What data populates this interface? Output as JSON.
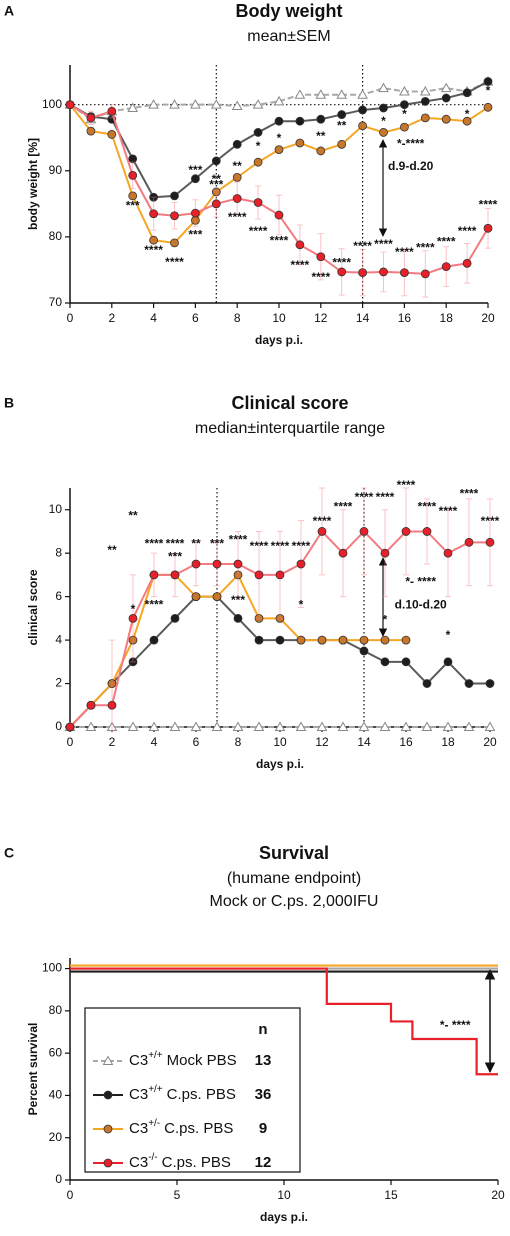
{
  "chart_data": [
    {
      "type": "line",
      "panel": "A",
      "title": "Body weight",
      "subtitle": "mean±SEM",
      "xlabel": "days p.i.",
      "ylabel": "body weight [%]",
      "x": [
        0,
        1,
        2,
        3,
        4,
        5,
        6,
        7,
        8,
        9,
        10,
        11,
        12,
        13,
        14,
        15,
        16,
        17,
        18,
        19,
        20
      ],
      "xlim": [
        0,
        20
      ],
      "xticks": [
        0,
        2,
        4,
        6,
        8,
        10,
        12,
        14,
        16,
        18,
        20
      ],
      "ylim": [
        70,
        106
      ],
      "yticks": [
        70,
        80,
        90,
        100
      ],
      "vlines": [
        7,
        14
      ],
      "hlines": [
        100
      ],
      "series": [
        {
          "color": "#a8a8a8",
          "marker_color": "#ffffff",
          "marker": "triangle",
          "dashed": true,
          "values": [
            100,
            97.8,
            99,
            99.5,
            100,
            100,
            100,
            100,
            99.8,
            100,
            100.5,
            101.5,
            101.5,
            101.5,
            101.5,
            102.5,
            102,
            102,
            102.5,
            102,
            103.5
          ]
        },
        {
          "color": "#5a5a5a",
          "marker_color": "#1e1e1e",
          "marker": "circle",
          "values": [
            100,
            98.2,
            97.8,
            91.8,
            86,
            86.2,
            88.8,
            91.5,
            94,
            95.8,
            97.5,
            97.5,
            97.8,
            98.5,
            99.2,
            99.5,
            100,
            100.5,
            101,
            101.8,
            103.5
          ]
        },
        {
          "color": "#f5a623",
          "marker_color": "#c8762a",
          "marker": "circle",
          "values": [
            100,
            96,
            95.5,
            86.2,
            79.5,
            79.1,
            82.5,
            86.8,
            89,
            91.3,
            93.2,
            94.2,
            93,
            94,
            96.8,
            95.8,
            96.6,
            98,
            97.8,
            97.5,
            99.6
          ]
        },
        {
          "color": "#f47a80",
          "marker_color": "#e8202a",
          "marker": "circle",
          "values": [
            100,
            98,
            99,
            89.3,
            83.5,
            83.2,
            83.6,
            85,
            85.8,
            85.2,
            83.3,
            78.8,
            77,
            74.7,
            74.6,
            74.7,
            74.6,
            74.4,
            75.5,
            76,
            81.3
          ],
          "errors": [
            0,
            1,
            1,
            2,
            2.5,
            2,
            2,
            2,
            2.5,
            2.5,
            3,
            3,
            3.5,
            3.5,
            3.5,
            3,
            3.5,
            3.5,
            3,
            3,
            3
          ]
        }
      ],
      "annotations": [
        {
          "x": 6,
          "y": 90,
          "text": "***",
          "color": "#e8202a"
        },
        {
          "x": 7,
          "y": 87.8,
          "text": "***",
          "color": "#e8202a"
        },
        {
          "x": 8,
          "y": 82.9,
          "text": "****",
          "color": "#e8202a"
        },
        {
          "x": 9,
          "y": 80.8,
          "text": "****",
          "color": "#e8202a"
        },
        {
          "x": 10,
          "y": 79.3,
          "text": "****",
          "color": "#e8202a"
        },
        {
          "x": 11,
          "y": 75.6,
          "text": "****",
          "color": "#e8202a"
        },
        {
          "x": 12,
          "y": 73.8,
          "text": "****",
          "color": "#e8202a"
        },
        {
          "x": 13,
          "y": 76,
          "text": "****",
          "color": "#e8202a"
        },
        {
          "x": 14,
          "y": 78.5,
          "text": "****",
          "color": "#e8202a"
        },
        {
          "x": 15,
          "y": 78.8,
          "text": "****",
          "color": "#e8202a"
        },
        {
          "x": 16,
          "y": 77.6,
          "text": "****",
          "color": "#e8202a"
        },
        {
          "x": 17,
          "y": 78.3,
          "text": "****",
          "color": "#e8202a"
        },
        {
          "x": 18,
          "y": 79.2,
          "text": "****",
          "color": "#e8202a"
        },
        {
          "x": 19,
          "y": 80.8,
          "text": "****",
          "color": "#e8202a"
        },
        {
          "x": 20,
          "y": 84.8,
          "text": "****",
          "color": "#e8202a"
        },
        {
          "x": 3,
          "y": 84.6,
          "text": "***",
          "color": "#f08c00"
        },
        {
          "x": 4,
          "y": 77.9,
          "text": "****",
          "color": "#f08c00"
        },
        {
          "x": 5,
          "y": 76.1,
          "text": "****",
          "color": "#f08c00"
        },
        {
          "x": 6,
          "y": 80.2,
          "text": "***",
          "color": "#f08c00"
        },
        {
          "x": 7,
          "y": 88.6,
          "text": "**",
          "color": "#f08c00"
        },
        {
          "x": 8,
          "y": 90.6,
          "text": "**",
          "color": "#f08c00"
        },
        {
          "x": 9,
          "y": 93.6,
          "text": "*",
          "color": "#f08c00"
        },
        {
          "x": 10,
          "y": 94.8,
          "text": "*",
          "color": "#f08c00"
        },
        {
          "x": 11,
          "y": 96.8,
          "text": "*",
          "color": "#f08c00"
        },
        {
          "x": 12,
          "y": 95.1,
          "text": "**",
          "color": "#f08c00"
        },
        {
          "x": 13,
          "y": 96.7,
          "text": "**",
          "color": "#f08c00"
        },
        {
          "x": 15,
          "y": 97.4,
          "text": "*",
          "color": "#f08c00"
        },
        {
          "x": 16,
          "y": 98.5,
          "text": "*",
          "color": "#f08c00"
        },
        {
          "x": 19,
          "y": 98.5,
          "text": "*",
          "color": "#f08c00"
        },
        {
          "x": 20,
          "y": 102,
          "text": "*",
          "color": "#f08c00"
        },
        {
          "x": 16.3,
          "y": 94,
          "text": "*-****",
          "color": "#222222"
        },
        {
          "x": 16.3,
          "y": 90.6,
          "text": "d.9-d.20",
          "color": "#222222"
        }
      ]
    },
    {
      "type": "line",
      "panel": "B",
      "title": "Clinical score",
      "subtitle": "median±interquartile range",
      "xlabel": "days p.i.",
      "ylabel": "clinical score",
      "x": [
        0,
        1,
        2,
        3,
        4,
        5,
        6,
        7,
        8,
        9,
        10,
        11,
        12,
        13,
        14,
        15,
        16,
        17,
        18,
        19,
        20
      ],
      "xlim": [
        0,
        20
      ],
      "xticks": [
        0,
        2,
        4,
        6,
        8,
        10,
        12,
        14,
        16,
        18,
        20
      ],
      "ylim": [
        0,
        11
      ],
      "yticks": [
        0,
        2,
        4,
        6,
        8,
        10
      ],
      "vlines": [
        7,
        14
      ],
      "series": [
        {
          "color": "#a8a8a8",
          "marker_color": "#ffffff",
          "marker": "triangle",
          "dashed": true,
          "values": [
            0,
            0,
            0,
            0,
            0,
            0,
            0,
            0,
            0,
            0,
            0,
            0,
            0,
            0,
            0,
            0,
            0,
            0,
            0,
            0,
            0
          ]
        },
        {
          "color": "#5a5a5a",
          "marker_color": "#1e1e1e",
          "marker": "circle",
          "values": [
            0,
            1,
            2,
            3,
            4,
            5,
            6,
            6,
            5,
            4,
            4,
            4,
            4,
            4,
            3.5,
            3,
            3,
            2,
            3,
            2,
            2
          ]
        },
        {
          "color": "#f5a623",
          "marker_color": "#c8762a",
          "marker": "circle",
          "values": [
            0,
            1,
            2,
            4,
            7,
            7,
            6,
            6,
            7,
            5,
            5,
            4,
            4,
            4,
            4,
            4,
            4,
            null,
            null,
            null,
            null
          ]
        },
        {
          "color": "#f47a80",
          "marker_color": "#e8202a",
          "marker": "circle",
          "values": [
            0,
            1,
            1,
            5,
            7,
            7,
            7.5,
            7.5,
            7.5,
            7,
            7,
            7.5,
            9,
            8,
            9,
            8,
            9,
            9,
            8,
            8.5,
            8.5
          ],
          "errors": [
            0,
            0,
            3,
            2,
            1,
            1,
            1,
            1,
            1.5,
            2,
            2,
            2,
            2,
            2,
            2,
            2,
            2,
            1.5,
            2,
            2,
            2
          ]
        }
      ],
      "annotations": [
        {
          "x": 2,
          "y": 8.1,
          "text": "**",
          "color": "#e8202a"
        },
        {
          "x": 3,
          "y": 9.7,
          "text": "**",
          "color": "#e8202a"
        },
        {
          "x": 4,
          "y": 8.4,
          "text": "****",
          "color": "#e8202a"
        },
        {
          "x": 5,
          "y": 8.4,
          "text": "****",
          "color": "#e8202a"
        },
        {
          "x": 6,
          "y": 8.4,
          "text": "**",
          "color": "#e8202a"
        },
        {
          "x": 7,
          "y": 8.4,
          "text": "***",
          "color": "#e8202a"
        },
        {
          "x": 8,
          "y": 8.6,
          "text": "****",
          "color": "#e8202a"
        },
        {
          "x": 9,
          "y": 8.3,
          "text": "****",
          "color": "#e8202a"
        },
        {
          "x": 10,
          "y": 8.3,
          "text": "****",
          "color": "#e8202a"
        },
        {
          "x": 11,
          "y": 8.3,
          "text": "****",
          "color": "#e8202a"
        },
        {
          "x": 12,
          "y": 9.45,
          "text": "****",
          "color": "#e8202a"
        },
        {
          "x": 13,
          "y": 10.1,
          "text": "****",
          "color": "#e8202a"
        },
        {
          "x": 14,
          "y": 10.55,
          "text": "****",
          "color": "#e8202a"
        },
        {
          "x": 15,
          "y": 10.55,
          "text": "****",
          "color": "#e8202a"
        },
        {
          "x": 16,
          "y": 11.1,
          "text": "****",
          "color": "#e8202a"
        },
        {
          "x": 17,
          "y": 10.1,
          "text": "****",
          "color": "#e8202a"
        },
        {
          "x": 18,
          "y": 9.9,
          "text": "****",
          "color": "#e8202a"
        },
        {
          "x": 19,
          "y": 10.7,
          "text": "****",
          "color": "#e8202a"
        },
        {
          "x": 20,
          "y": 9.45,
          "text": "****",
          "color": "#e8202a"
        },
        {
          "x": 3,
          "y": 5.4,
          "text": "*",
          "color": "#f08c00"
        },
        {
          "x": 4,
          "y": 5.6,
          "text": "****",
          "color": "#f08c00"
        },
        {
          "x": 5,
          "y": 7.8,
          "text": "***",
          "color": "#f08c00"
        },
        {
          "x": 8,
          "y": 5.8,
          "text": "***",
          "color": "#f08c00"
        },
        {
          "x": 11,
          "y": 5.6,
          "text": "*",
          "color": "#f08c00"
        },
        {
          "x": 15,
          "y": 4.9,
          "text": "*",
          "color": "#f08c00"
        },
        {
          "x": 18,
          "y": 4.2,
          "text": "*",
          "color": "#f08c00"
        },
        {
          "x": 16.7,
          "y": 6.65,
          "text": "*- ****",
          "color": "#222222"
        },
        {
          "x": 16.7,
          "y": 5.6,
          "text": "d.10-d.20",
          "color": "#222222"
        }
      ]
    },
    {
      "type": "step",
      "panel": "C",
      "title": "Survival",
      "subtitle": [
        "(humane endpoint)",
        "Mock or C.ps. 2,000IFU"
      ],
      "xlabel": "days p.i.",
      "ylabel": "Percent survival",
      "xlim": [
        0,
        20
      ],
      "xticks": [
        0,
        5,
        10,
        15,
        20
      ],
      "ylim": [
        0,
        105
      ],
      "yticks": [
        0,
        20,
        40,
        60,
        80,
        100
      ],
      "series": [
        {
          "color": "#a8a8a8",
          "marker_color": "#ffffff",
          "marker": "triangle",
          "dashed": true,
          "x": [
            0,
            20
          ],
          "values": [
            100,
            100
          ]
        },
        {
          "color": "#1e1e1e",
          "marker_color": "#1e1e1e",
          "marker": "circle",
          "x": [
            0,
            20
          ],
          "values": [
            100,
            100
          ]
        },
        {
          "color": "#f5a623",
          "marker_color": "#c8762a",
          "marker": "circle",
          "x": [
            0,
            20
          ],
          "values": [
            100,
            100
          ]
        },
        {
          "color": "#e8202a",
          "marker_color": "#e8202a",
          "marker": "circle",
          "x": [
            0,
            12,
            15,
            16,
            19,
            20
          ],
          "values": [
            100,
            83.3,
            75,
            66.7,
            50,
            50
          ]
        }
      ],
      "annotations": [
        {
          "x": 18,
          "y": 73,
          "text": "*- ****",
          "color": "#222222"
        }
      ],
      "legend": {
        "header": "n",
        "entries": [
          {
            "genotype": "C3",
            "superscript": "+/+",
            "label": "Mock PBS",
            "n": 13
          },
          {
            "genotype": "C3",
            "superscript": "+/+",
            "label": "C.ps. PBS",
            "n": 36
          },
          {
            "genotype": "C3",
            "superscript": "+/-",
            "label": "C.ps. PBS",
            "n": 9
          },
          {
            "genotype": "C3",
            "superscript": "-/-",
            "label": "C.ps. PBS",
            "n": 12
          }
        ]
      }
    }
  ]
}
